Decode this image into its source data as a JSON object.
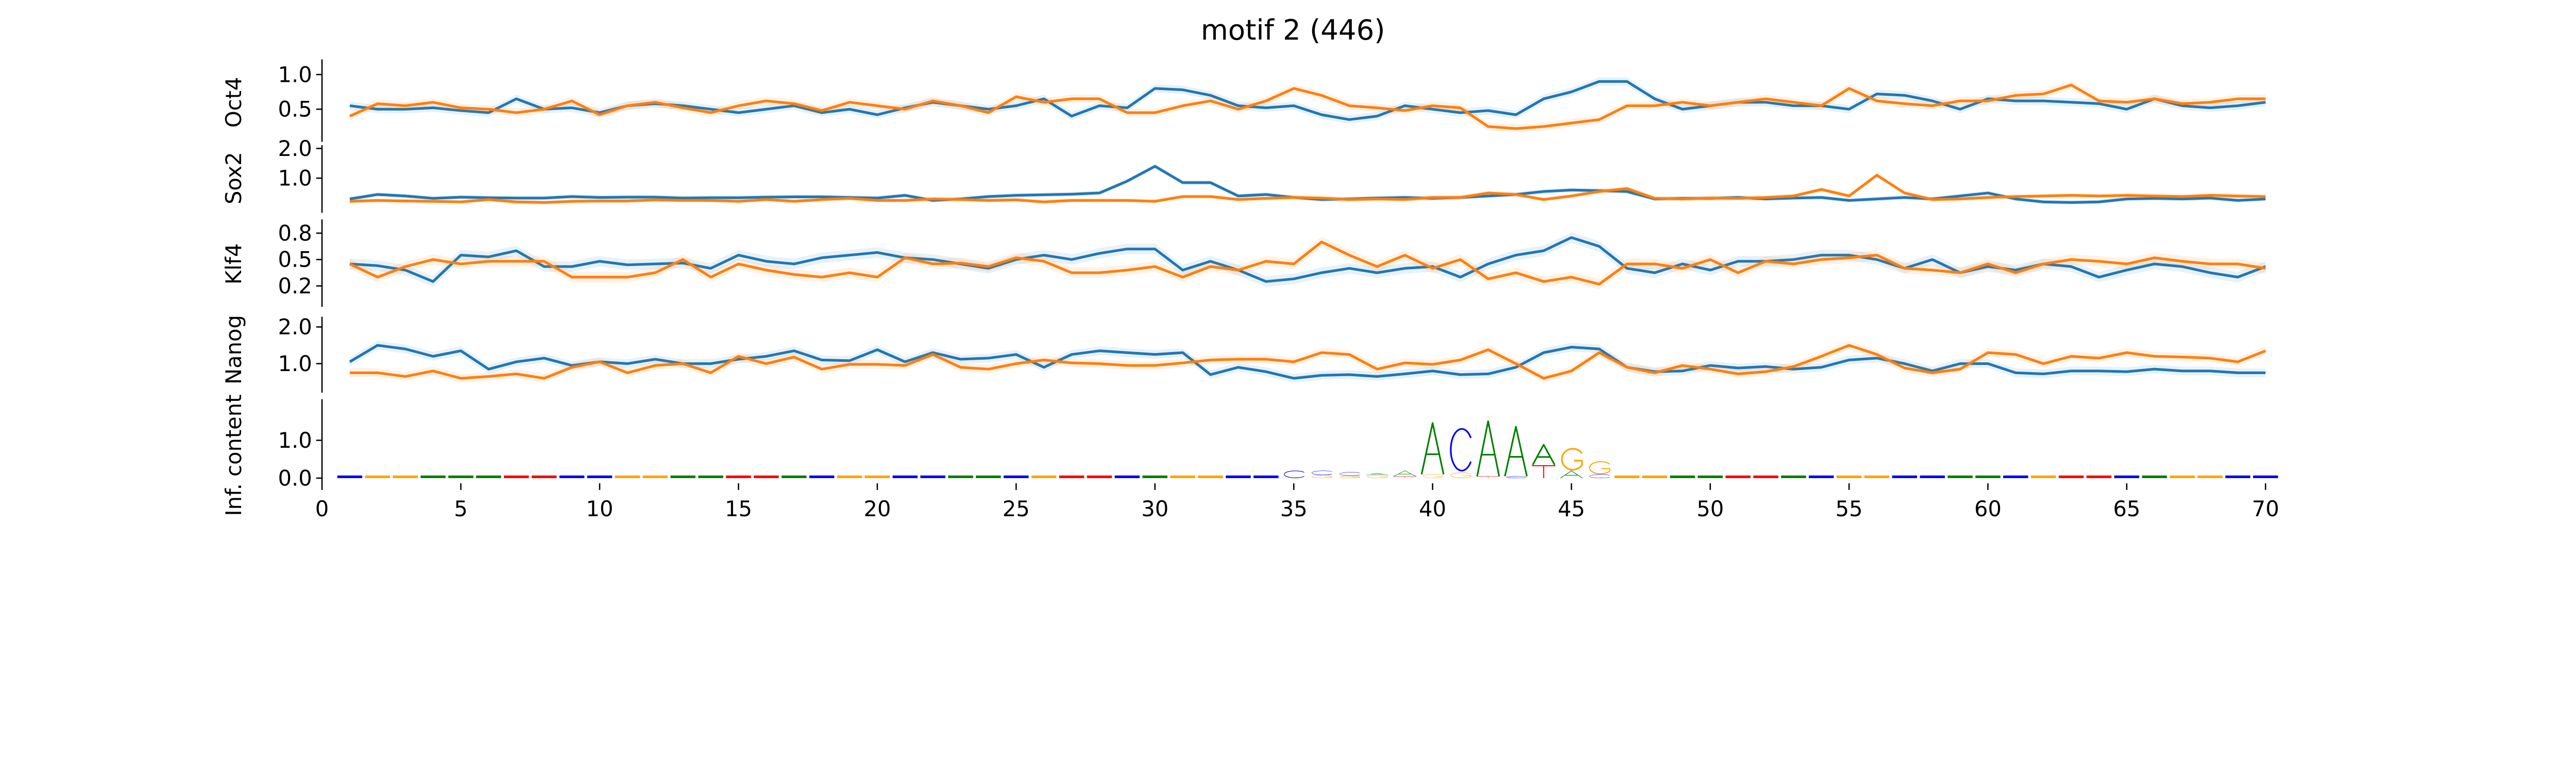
{
  "chart_data": {
    "type": "line",
    "title": "motif 2 (446)",
    "x": [
      1,
      2,
      3,
      4,
      5,
      6,
      7,
      8,
      9,
      10,
      11,
      12,
      13,
      14,
      15,
      16,
      17,
      18,
      19,
      20,
      21,
      22,
      23,
      24,
      25,
      26,
      27,
      28,
      29,
      30,
      31,
      32,
      33,
      34,
      35,
      36,
      37,
      38,
      39,
      40,
      41,
      42,
      43,
      44,
      45,
      46,
      47,
      48,
      49,
      50,
      51,
      52,
      53,
      54,
      55,
      56,
      57,
      58,
      59,
      60,
      61,
      62,
      63,
      64,
      65,
      66,
      67,
      68,
      69,
      70
    ],
    "xlim": [
      0,
      70.5
    ],
    "xticks": [
      "0",
      "5",
      "10",
      "15",
      "20",
      "25",
      "30",
      "35",
      "40",
      "45",
      "50",
      "55",
      "60",
      "65",
      "70"
    ],
    "colors": {
      "series1": "#1f77b4",
      "series2": "#ff7f0e"
    },
    "panels": [
      {
        "ylabel": "Oct4",
        "ylim": [
          0.1,
          1.1
        ],
        "yticks": [
          "1.0",
          "0.5"
        ],
        "ytick_values": [
          1.0,
          0.5
        ],
        "band": 0.06,
        "series": [
          {
            "name": "blue",
            "values": [
              0.55,
              0.5,
              0.5,
              0.52,
              0.48,
              0.45,
              0.65,
              0.5,
              0.52,
              0.45,
              0.55,
              0.58,
              0.55,
              0.5,
              0.45,
              0.5,
              0.55,
              0.45,
              0.5,
              0.42,
              0.52,
              0.6,
              0.55,
              0.5,
              0.55,
              0.65,
              0.4,
              0.55,
              0.52,
              0.8,
              0.78,
              0.7,
              0.55,
              0.52,
              0.55,
              0.42,
              0.35,
              0.4,
              0.55,
              0.5,
              0.45,
              0.48,
              0.42,
              0.65,
              0.75,
              0.9,
              0.9,
              0.65,
              0.5,
              0.55,
              0.6,
              0.6,
              0.55,
              0.55,
              0.5,
              0.72,
              0.7,
              0.62,
              0.5,
              0.65,
              0.62,
              0.62,
              0.6,
              0.58,
              0.5,
              0.65,
              0.55,
              0.52,
              0.55,
              0.6
            ]
          },
          {
            "name": "orange",
            "values": [
              0.4,
              0.58,
              0.55,
              0.6,
              0.52,
              0.5,
              0.45,
              0.5,
              0.62,
              0.42,
              0.55,
              0.6,
              0.52,
              0.45,
              0.55,
              0.62,
              0.58,
              0.48,
              0.6,
              0.55,
              0.5,
              0.62,
              0.55,
              0.45,
              0.68,
              0.6,
              0.65,
              0.65,
              0.45,
              0.45,
              0.55,
              0.62,
              0.5,
              0.62,
              0.8,
              0.7,
              0.55,
              0.52,
              0.48,
              0.55,
              0.52,
              0.25,
              0.22,
              0.25,
              0.3,
              0.35,
              0.55,
              0.55,
              0.6,
              0.55,
              0.6,
              0.65,
              0.6,
              0.55,
              0.8,
              0.62,
              0.58,
              0.55,
              0.62,
              0.62,
              0.7,
              0.72,
              0.85,
              0.62,
              0.6,
              0.65,
              0.58,
              0.6,
              0.65,
              0.65
            ]
          }
        ]
      },
      {
        "ylabel": "Sox2",
        "ylim": [
          0.0,
          2.2
        ],
        "yticks": [
          "2.0",
          "1.0"
        ],
        "ytick_values": [
          2.0,
          1.0
        ],
        "band": 0.08,
        "series": [
          {
            "name": "blue",
            "values": [
              0.3,
              0.45,
              0.4,
              0.32,
              0.36,
              0.34,
              0.33,
              0.33,
              0.38,
              0.35,
              0.36,
              0.36,
              0.33,
              0.34,
              0.34,
              0.36,
              0.37,
              0.37,
              0.35,
              0.33,
              0.42,
              0.25,
              0.3,
              0.38,
              0.42,
              0.44,
              0.46,
              0.5,
              0.9,
              1.4,
              0.85,
              0.85,
              0.4,
              0.45,
              0.35,
              0.28,
              0.3,
              0.33,
              0.35,
              0.32,
              0.35,
              0.4,
              0.45,
              0.55,
              0.6,
              0.58,
              0.55,
              0.3,
              0.32,
              0.32,
              0.35,
              0.3,
              0.33,
              0.35,
              0.25,
              0.3,
              0.35,
              0.3,
              0.4,
              0.5,
              0.3,
              0.2,
              0.18,
              0.2,
              0.3,
              0.32,
              0.3,
              0.33,
              0.25,
              0.3
            ]
          },
          {
            "name": "orange",
            "values": [
              0.22,
              0.25,
              0.23,
              0.22,
              0.2,
              0.28,
              0.2,
              0.18,
              0.22,
              0.23,
              0.23,
              0.27,
              0.25,
              0.25,
              0.22,
              0.28,
              0.22,
              0.28,
              0.32,
              0.25,
              0.25,
              0.3,
              0.28,
              0.25,
              0.27,
              0.2,
              0.25,
              0.25,
              0.25,
              0.22,
              0.38,
              0.38,
              0.28,
              0.32,
              0.35,
              0.33,
              0.28,
              0.3,
              0.28,
              0.35,
              0.35,
              0.5,
              0.45,
              0.28,
              0.4,
              0.55,
              0.65,
              0.32,
              0.3,
              0.33,
              0.32,
              0.35,
              0.4,
              0.62,
              0.4,
              1.1,
              0.5,
              0.28,
              0.3,
              0.35,
              0.38,
              0.4,
              0.42,
              0.4,
              0.42,
              0.4,
              0.38,
              0.42,
              0.4,
              0.38
            ]
          }
        ]
      },
      {
        "ylabel": "Klf4",
        "ylim": [
          0.0,
          0.9
        ],
        "yticks": [
          "0.8",
          "0.5",
          "0.2"
        ],
        "ytick_values": [
          0.8,
          0.5,
          0.2
        ],
        "band": 0.06,
        "series": [
          {
            "name": "blue",
            "values": [
              0.45,
              0.43,
              0.38,
              0.25,
              0.55,
              0.53,
              0.6,
              0.42,
              0.42,
              0.48,
              0.44,
              0.45,
              0.46,
              0.4,
              0.55,
              0.48,
              0.45,
              0.52,
              0.55,
              0.58,
              0.52,
              0.5,
              0.45,
              0.4,
              0.5,
              0.55,
              0.5,
              0.57,
              0.62,
              0.62,
              0.38,
              0.48,
              0.38,
              0.25,
              0.28,
              0.35,
              0.4,
              0.35,
              0.4,
              0.42,
              0.3,
              0.45,
              0.55,
              0.6,
              0.75,
              0.65,
              0.4,
              0.35,
              0.45,
              0.38,
              0.48,
              0.48,
              0.5,
              0.55,
              0.55,
              0.5,
              0.4,
              0.5,
              0.35,
              0.42,
              0.38,
              0.45,
              0.42,
              0.3,
              0.38,
              0.45,
              0.42,
              0.35,
              0.3,
              0.42
            ]
          },
          {
            "name": "orange",
            "values": [
              0.45,
              0.3,
              0.42,
              0.5,
              0.45,
              0.48,
              0.48,
              0.48,
              0.3,
              0.3,
              0.3,
              0.35,
              0.5,
              0.3,
              0.45,
              0.38,
              0.33,
              0.3,
              0.35,
              0.3,
              0.52,
              0.45,
              0.46,
              0.42,
              0.52,
              0.48,
              0.35,
              0.35,
              0.38,
              0.42,
              0.3,
              0.42,
              0.38,
              0.48,
              0.45,
              0.7,
              0.55,
              0.42,
              0.55,
              0.4,
              0.5,
              0.28,
              0.35,
              0.25,
              0.3,
              0.22,
              0.45,
              0.45,
              0.4,
              0.5,
              0.35,
              0.48,
              0.45,
              0.5,
              0.52,
              0.55,
              0.4,
              0.38,
              0.35,
              0.45,
              0.35,
              0.45,
              0.5,
              0.48,
              0.45,
              0.52,
              0.48,
              0.45,
              0.45,
              0.4
            ]
          }
        ]
      },
      {
        "ylabel": "Nanog",
        "ylim": [
          0.3,
          2.1
        ],
        "yticks": [
          "2.0",
          "1.0"
        ],
        "ytick_values": [
          2.0,
          1.0
        ],
        "band": 0.12,
        "series": [
          {
            "name": "blue",
            "values": [
              1.05,
              1.5,
              1.4,
              1.2,
              1.35,
              0.85,
              1.05,
              1.15,
              0.95,
              1.05,
              1.0,
              1.12,
              1.0,
              1.0,
              1.12,
              1.2,
              1.35,
              1.1,
              1.08,
              1.38,
              1.05,
              1.3,
              1.12,
              1.15,
              1.25,
              0.9,
              1.25,
              1.35,
              1.3,
              1.25,
              1.3,
              0.7,
              0.9,
              0.78,
              0.6,
              0.68,
              0.7,
              0.65,
              0.72,
              0.8,
              0.7,
              0.72,
              0.9,
              1.3,
              1.45,
              1.4,
              0.9,
              0.78,
              0.8,
              0.95,
              0.88,
              0.92,
              0.85,
              0.9,
              1.1,
              1.15,
              1.0,
              0.8,
              1.0,
              1.0,
              0.75,
              0.72,
              0.8,
              0.8,
              0.78,
              0.85,
              0.8,
              0.8,
              0.75,
              0.75
            ]
          },
          {
            "name": "orange",
            "values": [
              0.75,
              0.75,
              0.65,
              0.8,
              0.6,
              0.65,
              0.72,
              0.6,
              0.9,
              1.05,
              0.75,
              0.95,
              1.0,
              0.75,
              1.2,
              1.0,
              1.18,
              0.85,
              0.98,
              0.98,
              0.95,
              1.25,
              0.9,
              0.85,
              1.0,
              1.1,
              1.02,
              1.0,
              0.95,
              0.95,
              1.02,
              1.1,
              1.12,
              1.12,
              1.05,
              1.3,
              1.25,
              0.85,
              1.02,
              0.98,
              1.1,
              1.38,
              1.0,
              0.6,
              0.8,
              1.3,
              0.9,
              0.75,
              0.95,
              0.85,
              0.72,
              0.78,
              0.92,
              1.2,
              1.5,
              1.25,
              0.88,
              0.75,
              0.85,
              1.3,
              1.25,
              1.0,
              1.2,
              1.15,
              1.3,
              1.2,
              1.18,
              1.15,
              1.05,
              1.35
            ]
          }
        ]
      }
    ],
    "logo": {
      "ylabel": "Inf. content",
      "ylim": [
        -0.05,
        2.0
      ],
      "yticks": [
        "1.0",
        "0.0"
      ],
      "ytick_values": [
        1.0,
        0.0
      ],
      "letter_colors": {
        "A": "#008000",
        "C": "#0000ff",
        "G": "#ffa500",
        "T": "#ff0000"
      },
      "letters": [
        {
          "pos": 35,
          "stack": [
            [
              "C",
              0.2
            ]
          ]
        },
        {
          "pos": 36,
          "stack": [
            [
              "G",
              0.08
            ],
            [
              "C",
              0.12
            ]
          ]
        },
        {
          "pos": 37,
          "stack": [
            [
              "G",
              0.06
            ],
            [
              "C",
              0.1
            ]
          ]
        },
        {
          "pos": 38,
          "stack": [
            [
              "G",
              0.08
            ],
            [
              "A",
              0.05
            ]
          ]
        },
        {
          "pos": 39,
          "stack": [
            [
              "T",
              0.05
            ],
            [
              "A",
              0.15
            ]
          ]
        },
        {
          "pos": 40,
          "stack": [
            [
              "G",
              0.1
            ],
            [
              "A",
              1.4
            ]
          ]
        },
        {
          "pos": 41,
          "stack": [
            [
              "G",
              0.15
            ],
            [
              "C",
              1.2
            ]
          ]
        },
        {
          "pos": 42,
          "stack": [
            [
              "T",
              0.05
            ],
            [
              "A",
              1.5
            ]
          ]
        },
        {
          "pos": 43,
          "stack": [
            [
              "C",
              0.05
            ],
            [
              "A",
              1.35
            ]
          ]
        },
        {
          "pos": 44,
          "stack": [
            [
              "T",
              0.35
            ],
            [
              "A",
              0.55
            ]
          ]
        },
        {
          "pos": 45,
          "stack": [
            [
              "A",
              0.2
            ],
            [
              "G",
              0.6
            ]
          ]
        },
        {
          "pos": 46,
          "stack": [
            [
              "C",
              0.1
            ],
            [
              "G",
              0.35
            ]
          ]
        }
      ],
      "background_letters": "CCGGAAATTCCGGAATTACGGCCAACGTTCAGGCCA"
    }
  }
}
